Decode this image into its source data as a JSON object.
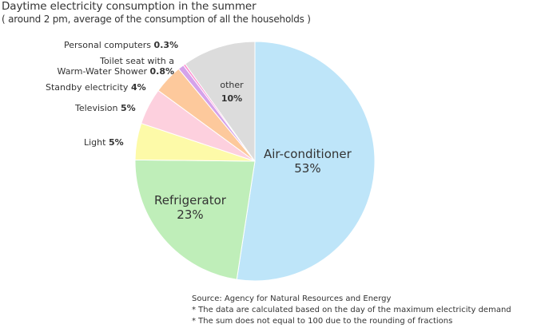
{
  "chart_data": {
    "type": "pie",
    "title": "Daytime electricity consumption in the summer",
    "subtitle": "( around 2 pm, average of the consumption of all the households )",
    "slices": [
      {
        "name": "Air-conditioner",
        "value": 53,
        "value_label": "53%",
        "color": "#bee5f9"
      },
      {
        "name": "Refrigerator",
        "value": 23,
        "value_label": "23%",
        "color": "#bfeeb9"
      },
      {
        "name": "Light",
        "value": 5,
        "value_label": "5%",
        "color": "#fdfaa8"
      },
      {
        "name": "Television",
        "value": 5,
        "value_label": "5%",
        "color": "#fdd0de"
      },
      {
        "name": "Standby electricity",
        "value": 4,
        "value_label": "4%",
        "color": "#fdc99c"
      },
      {
        "name": "Toilet seat with a Warm-Water Shower",
        "name_line1": "Toilet seat with a",
        "name_line2": "Warm-Water Shower",
        "value": 0.8,
        "value_label": "0.8%",
        "color": "#d5a2ea"
      },
      {
        "name": "Personal computers",
        "value": 0.3,
        "value_label": "0.3%",
        "color": "#ff8fd0"
      },
      {
        "name": "other",
        "value": 10,
        "value_label": "10%",
        "color": "#dcdcdc"
      }
    ]
  },
  "notes": {
    "source": "Source: Agency for Natural Resources and Energy",
    "note1": "* The data are calculated based on the day of the maximum electricity demand",
    "note2": "* The sum does not equal to 100 due to the rounding of fractions"
  }
}
